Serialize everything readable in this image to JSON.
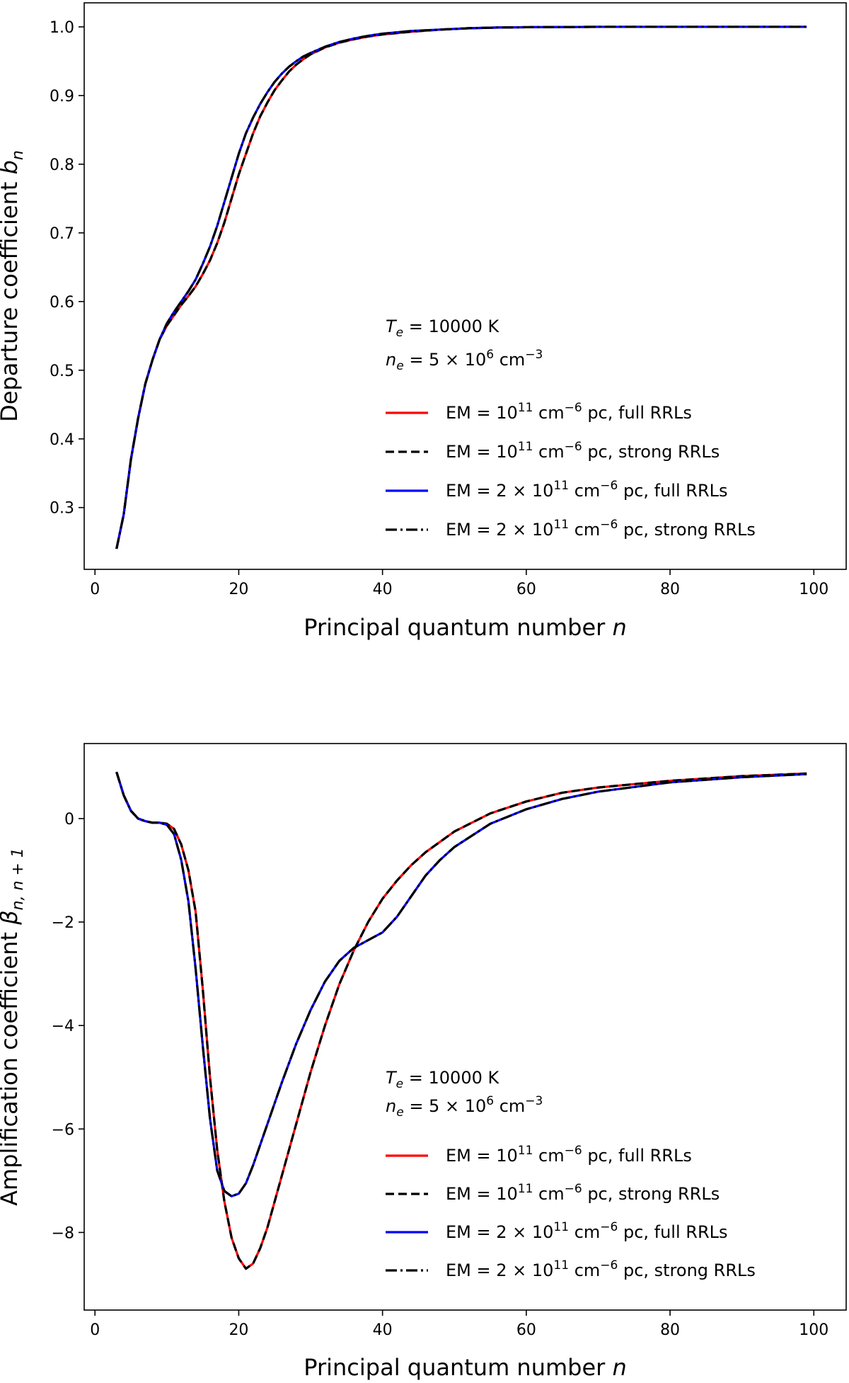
{
  "chart_data": [
    {
      "type": "line",
      "title": "",
      "xlabel": "Principal quantum number",
      "xlabel_var": "n",
      "ylabel": "Departure coefficient",
      "ylabel_var": "b",
      "ylabel_sub": "n",
      "xlim": [
        -1.5,
        104.5
      ],
      "ylim": [
        0.21,
        1.035
      ],
      "xticks": [
        0,
        20,
        40,
        60,
        80,
        100
      ],
      "xtick_labels": [
        "0",
        "20",
        "40",
        "60",
        "80",
        "100"
      ],
      "yticks": [
        0.3,
        0.4,
        0.5,
        0.6,
        0.7,
        0.8,
        0.9,
        1.0
      ],
      "ytick_labels": [
        "0.3",
        "0.4",
        "0.5",
        "0.6",
        "0.7",
        "0.8",
        "0.9",
        "1.0"
      ],
      "grid": false,
      "legend_position": "lower-right",
      "annotations": [
        {
          "var": "T",
          "sub": "e",
          "text": " = 10000 K"
        },
        {
          "var": "n",
          "sub": "e",
          "text": " = 5 × 10",
          "sup": "6",
          "unit": " cm",
          "unit_sup": "−3"
        }
      ],
      "series": [
        {
          "name": "EM = 10^11 cm^-6 pc, full RRLs",
          "legend_pre": "EM = 10",
          "legend_sup": "11",
          "legend_mid": " cm",
          "legend_sup2": "−6",
          "legend_post": " pc, full RRLs",
          "color": "#ff0000",
          "dash": "solid",
          "x": [
            3,
            4,
            5,
            6,
            7,
            8,
            9,
            10,
            11,
            12,
            13,
            14,
            15,
            16,
            17,
            18,
            19,
            20,
            21,
            22,
            23,
            24,
            25,
            26,
            27,
            28,
            29,
            30,
            32,
            34,
            36,
            38,
            40,
            44,
            48,
            52,
            56,
            60,
            70,
            80,
            90,
            99
          ],
          "y": [
            0.24,
            0.29,
            0.37,
            0.43,
            0.48,
            0.515,
            0.545,
            0.565,
            0.58,
            0.595,
            0.608,
            0.622,
            0.64,
            0.66,
            0.685,
            0.715,
            0.75,
            0.785,
            0.815,
            0.845,
            0.87,
            0.89,
            0.908,
            0.922,
            0.935,
            0.945,
            0.953,
            0.96,
            0.97,
            0.977,
            0.982,
            0.986,
            0.989,
            0.993,
            0.996,
            0.998,
            0.999,
            0.9995,
            1.0,
            1.0,
            1.0,
            1.0
          ]
        },
        {
          "name": "EM = 10^11 cm^-6 pc, strong RRLs",
          "legend_pre": "EM = 10",
          "legend_sup": "11",
          "legend_mid": " cm",
          "legend_sup2": "−6",
          "legend_post": " pc, strong RRLs",
          "color": "#000000",
          "dash": "dashed",
          "x": [
            3,
            4,
            5,
            6,
            7,
            8,
            9,
            10,
            11,
            12,
            13,
            14,
            15,
            16,
            17,
            18,
            19,
            20,
            21,
            22,
            23,
            24,
            25,
            26,
            27,
            28,
            29,
            30,
            32,
            34,
            36,
            38,
            40,
            44,
            48,
            52,
            56,
            60,
            70,
            80,
            90,
            99
          ],
          "y": [
            0.24,
            0.29,
            0.37,
            0.43,
            0.48,
            0.515,
            0.545,
            0.565,
            0.58,
            0.595,
            0.608,
            0.622,
            0.64,
            0.66,
            0.685,
            0.715,
            0.75,
            0.785,
            0.815,
            0.845,
            0.87,
            0.89,
            0.908,
            0.922,
            0.935,
            0.945,
            0.953,
            0.96,
            0.97,
            0.977,
            0.982,
            0.986,
            0.989,
            0.993,
            0.996,
            0.998,
            0.999,
            0.9995,
            1.0,
            1.0,
            1.0,
            1.0
          ]
        },
        {
          "name": "EM = 2x10^11 cm^-6 pc, full RRLs",
          "legend_pre": "EM = 2 × 10",
          "legend_sup": "11",
          "legend_mid": " cm",
          "legend_sup2": "−6",
          "legend_post": " pc, full RRLs",
          "color": "#0000ff",
          "dash": "solid",
          "x": [
            3,
            4,
            5,
            6,
            7,
            8,
            9,
            10,
            11,
            12,
            13,
            14,
            15,
            16,
            17,
            18,
            19,
            20,
            21,
            22,
            23,
            24,
            25,
            26,
            27,
            28,
            29,
            30,
            32,
            34,
            36,
            38,
            40,
            44,
            48,
            52,
            56,
            60,
            70,
            80,
            90,
            99
          ],
          "y": [
            0.24,
            0.29,
            0.37,
            0.43,
            0.48,
            0.515,
            0.545,
            0.568,
            0.585,
            0.6,
            0.615,
            0.632,
            0.655,
            0.68,
            0.71,
            0.745,
            0.78,
            0.815,
            0.845,
            0.868,
            0.888,
            0.905,
            0.92,
            0.932,
            0.942,
            0.95,
            0.957,
            0.962,
            0.971,
            0.978,
            0.983,
            0.987,
            0.99,
            0.994,
            0.996,
            0.998,
            0.999,
            0.9995,
            1.0,
            1.0,
            1.0,
            1.0
          ]
        },
        {
          "name": "EM = 2x10^11 cm^-6 pc, strong RRLs",
          "legend_pre": "EM = 2 × 10",
          "legend_sup": "11",
          "legend_mid": " cm",
          "legend_sup2": "−6",
          "legend_post": " pc, strong RRLs",
          "color": "#000000",
          "dash": "dashdot",
          "x": [
            3,
            4,
            5,
            6,
            7,
            8,
            9,
            10,
            11,
            12,
            13,
            14,
            15,
            16,
            17,
            18,
            19,
            20,
            21,
            22,
            23,
            24,
            25,
            26,
            27,
            28,
            29,
            30,
            32,
            34,
            36,
            38,
            40,
            44,
            48,
            52,
            56,
            60,
            70,
            80,
            90,
            99
          ],
          "y": [
            0.24,
            0.29,
            0.37,
            0.43,
            0.48,
            0.515,
            0.545,
            0.568,
            0.585,
            0.6,
            0.615,
            0.632,
            0.655,
            0.68,
            0.71,
            0.745,
            0.78,
            0.815,
            0.845,
            0.868,
            0.888,
            0.905,
            0.92,
            0.932,
            0.942,
            0.95,
            0.957,
            0.962,
            0.971,
            0.978,
            0.983,
            0.987,
            0.99,
            0.994,
            0.996,
            0.998,
            0.999,
            0.9995,
            1.0,
            1.0,
            1.0,
            1.0
          ]
        }
      ]
    },
    {
      "type": "line",
      "title": "",
      "xlabel": "Principal quantum number",
      "xlabel_var": "n",
      "ylabel": "Amplification coefficient",
      "ylabel_var": "β",
      "ylabel_sub": "n, n + 1",
      "xlim": [
        -1.5,
        104.5
      ],
      "ylim": [
        -9.5,
        1.45
      ],
      "xticks": [
        0,
        20,
        40,
        60,
        80,
        100
      ],
      "xtick_labels": [
        "0",
        "20",
        "40",
        "60",
        "80",
        "100"
      ],
      "yticks": [
        -8,
        -6,
        -4,
        -2,
        0
      ],
      "ytick_labels": [
        "−8",
        "−6",
        "−4",
        "−2",
        "0"
      ],
      "grid": false,
      "legend_position": "lower-right",
      "annotations": [
        {
          "var": "T",
          "sub": "e",
          "text": " = 10000 K"
        },
        {
          "var": "n",
          "sub": "e",
          "text": " = 5 × 10",
          "sup": "6",
          "unit": " cm",
          "unit_sup": "−3"
        }
      ],
      "series": [
        {
          "name": "EM = 10^11 cm^-6 pc, full RRLs",
          "legend_pre": "EM = 10",
          "legend_sup": "11",
          "legend_mid": " cm",
          "legend_sup2": "−6",
          "legend_post": " pc, full RRLs",
          "color": "#ff0000",
          "dash": "solid",
          "x": [
            3,
            4,
            5,
            6,
            7,
            8,
            9,
            10,
            11,
            12,
            13,
            14,
            15,
            16,
            17,
            18,
            19,
            20,
            21,
            22,
            23,
            24,
            25,
            26,
            28,
            30,
            32,
            34,
            36,
            38,
            40,
            42,
            44,
            46,
            48,
            50,
            55,
            60,
            65,
            70,
            80,
            90,
            99
          ],
          "y": [
            0.9,
            0.45,
            0.15,
            0.0,
            -0.05,
            -0.08,
            -0.08,
            -0.1,
            -0.2,
            -0.5,
            -1.0,
            -1.8,
            -3.3,
            -5.0,
            -6.4,
            -7.4,
            -8.1,
            -8.5,
            -8.7,
            -8.6,
            -8.3,
            -7.9,
            -7.4,
            -6.9,
            -5.9,
            -4.9,
            -4.0,
            -3.2,
            -2.55,
            -2.0,
            -1.55,
            -1.2,
            -0.9,
            -0.65,
            -0.45,
            -0.25,
            0.1,
            0.33,
            0.5,
            0.6,
            0.73,
            0.82,
            0.87
          ]
        },
        {
          "name": "EM = 10^11 cm^-6 pc, strong RRLs",
          "legend_pre": "EM = 10",
          "legend_sup": "11",
          "legend_mid": " cm",
          "legend_sup2": "−6",
          "legend_post": " pc, strong RRLs",
          "color": "#000000",
          "dash": "dashed",
          "x": [
            3,
            4,
            5,
            6,
            7,
            8,
            9,
            10,
            11,
            12,
            13,
            14,
            15,
            16,
            17,
            18,
            19,
            20,
            21,
            22,
            23,
            24,
            25,
            26,
            28,
            30,
            32,
            34,
            36,
            38,
            40,
            42,
            44,
            46,
            48,
            50,
            55,
            60,
            65,
            70,
            80,
            90,
            99
          ],
          "y": [
            0.9,
            0.45,
            0.15,
            0.0,
            -0.05,
            -0.08,
            -0.08,
            -0.1,
            -0.2,
            -0.5,
            -1.0,
            -1.8,
            -3.3,
            -5.0,
            -6.4,
            -7.4,
            -8.1,
            -8.5,
            -8.7,
            -8.6,
            -8.3,
            -7.9,
            -7.4,
            -6.9,
            -5.9,
            -4.9,
            -4.0,
            -3.2,
            -2.55,
            -2.0,
            -1.55,
            -1.2,
            -0.9,
            -0.65,
            -0.45,
            -0.25,
            0.1,
            0.33,
            0.5,
            0.6,
            0.73,
            0.82,
            0.87
          ]
        },
        {
          "name": "EM = 2x10^11 cm^-6 pc, full RRLs",
          "legend_pre": "EM = 2 × 10",
          "legend_sup": "11",
          "legend_mid": " cm",
          "legend_sup2": "−6",
          "legend_post": " pc, full RRLs",
          "color": "#0000ff",
          "dash": "solid",
          "x": [
            3,
            4,
            5,
            6,
            7,
            8,
            9,
            10,
            11,
            12,
            13,
            14,
            15,
            16,
            17,
            18,
            19,
            20,
            21,
            22,
            23,
            24,
            25,
            26,
            28,
            30,
            32,
            34,
            36,
            38,
            40,
            42,
            44,
            46,
            48,
            50,
            55,
            60,
            65,
            70,
            80,
            90,
            99
          ],
          "y": [
            0.9,
            0.45,
            0.15,
            0.0,
            -0.05,
            -0.08,
            -0.08,
            -0.12,
            -0.3,
            -0.8,
            -1.6,
            -2.9,
            -4.4,
            -5.8,
            -6.8,
            -7.2,
            -7.3,
            -7.25,
            -7.05,
            -6.7,
            -6.3,
            -5.9,
            -5.5,
            -5.1,
            -4.35,
            -3.7,
            -3.15,
            -2.75,
            -2.5,
            -2.35,
            -2.2,
            -1.9,
            -1.5,
            -1.1,
            -0.8,
            -0.55,
            -0.1,
            0.18,
            0.38,
            0.52,
            0.7,
            0.8,
            0.86
          ]
        },
        {
          "name": "EM = 2x10^11 cm^-6 pc, strong RRLs",
          "legend_pre": "EM = 2 × 10",
          "legend_sup": "11",
          "legend_mid": " cm",
          "legend_sup2": "−6",
          "legend_post": " pc, strong RRLs",
          "color": "#000000",
          "dash": "dashdot",
          "x": [
            3,
            4,
            5,
            6,
            7,
            8,
            9,
            10,
            11,
            12,
            13,
            14,
            15,
            16,
            17,
            18,
            19,
            20,
            21,
            22,
            23,
            24,
            25,
            26,
            28,
            30,
            32,
            34,
            36,
            38,
            40,
            42,
            44,
            46,
            48,
            50,
            55,
            60,
            65,
            70,
            80,
            90,
            99
          ],
          "y": [
            0.9,
            0.45,
            0.15,
            0.0,
            -0.05,
            -0.08,
            -0.08,
            -0.12,
            -0.3,
            -0.8,
            -1.6,
            -2.9,
            -4.4,
            -5.8,
            -6.8,
            -7.2,
            -7.3,
            -7.25,
            -7.05,
            -6.7,
            -6.3,
            -5.9,
            -5.5,
            -5.1,
            -4.35,
            -3.7,
            -3.15,
            -2.75,
            -2.5,
            -2.35,
            -2.2,
            -1.9,
            -1.5,
            -1.1,
            -0.8,
            -0.55,
            -0.1,
            0.18,
            0.38,
            0.52,
            0.7,
            0.8,
            0.86
          ]
        }
      ]
    }
  ]
}
